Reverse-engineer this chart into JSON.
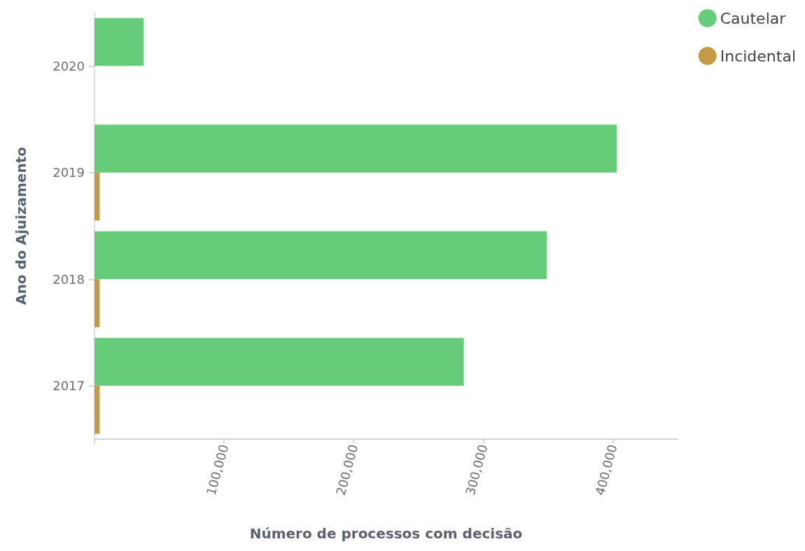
{
  "chart_data": {
    "type": "bar",
    "orientation": "horizontal",
    "xlabel": "Número de processos com decisão",
    "ylabel": "Ano do Ajuizamento",
    "categories": [
      "2020",
      "2019",
      "2018",
      "2017"
    ],
    "series": [
      {
        "name": "Cautelar",
        "color": "#66cc7a",
        "values": [
          38000,
          403000,
          349000,
          285000
        ]
      },
      {
        "name": "Incidental",
        "color": "#c49a45",
        "values": [
          null,
          4000,
          4000,
          4000
        ]
      }
    ],
    "xlim": [
      0,
      450000
    ],
    "xticks": [
      {
        "value": 0,
        "label": null
      },
      {
        "value": 100000,
        "label": "100,000"
      },
      {
        "value": 200000,
        "label": "200,000"
      },
      {
        "value": 300000,
        "label": "300,000"
      },
      {
        "value": 400000,
        "label": "400,000"
      }
    ],
    "grid": false,
    "legend": "top right"
  }
}
